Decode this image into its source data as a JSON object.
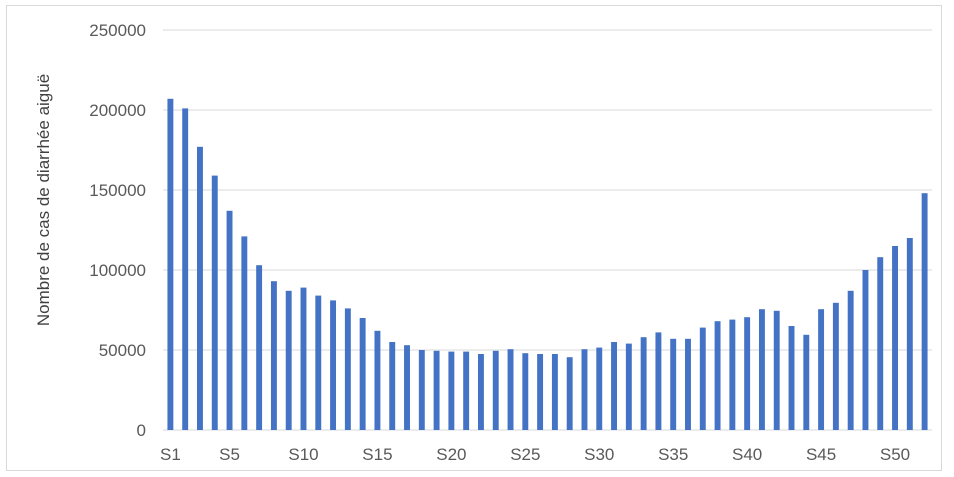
{
  "chart_data": {
    "type": "bar",
    "ylabel": "Nombre de cas  de diarrhée aiguë",
    "xlabel": "",
    "title": "",
    "ylim": [
      0,
      250000
    ],
    "yticks": [
      0,
      50000,
      100000,
      150000,
      200000,
      250000
    ],
    "ytick_labels": [
      "0",
      "50000",
      "100000",
      "150000",
      "200000",
      "250000"
    ],
    "grid": true,
    "legend": "none",
    "bar_color": "#4472c4",
    "grid_color": "#d9d9d9",
    "categories": [
      "S1",
      "S2",
      "S3",
      "S4",
      "S5",
      "S6",
      "S7",
      "S8",
      "S9",
      "S10",
      "S11",
      "S12",
      "S13",
      "S14",
      "S15",
      "S16",
      "S17",
      "S18",
      "S19",
      "S20",
      "S21",
      "S22",
      "S23",
      "S24",
      "S25",
      "S26",
      "S27",
      "S28",
      "S29",
      "S30",
      "S31",
      "S32",
      "S33",
      "S34",
      "S35",
      "S36",
      "S37",
      "S38",
      "S39",
      "S40",
      "S41",
      "S42",
      "S43",
      "S44",
      "S45",
      "S46",
      "S47",
      "S48",
      "S49",
      "S50",
      "S51",
      "S52"
    ],
    "visible_tick_labels": [
      "S1",
      "S5",
      "S10",
      "S15",
      "S20",
      "S25",
      "S30",
      "S35",
      "S40",
      "S45",
      "S50"
    ],
    "values": [
      207000,
      201000,
      177000,
      159000,
      137000,
      121000,
      103000,
      93000,
      87000,
      89000,
      84000,
      81000,
      76000,
      70000,
      62000,
      55000,
      53000,
      50000,
      49500,
      49000,
      49000,
      47500,
      49500,
      50500,
      48000,
      47500,
      47500,
      45500,
      50500,
      51500,
      55000,
      54000,
      58000,
      61000,
      57000,
      57000,
      64000,
      68000,
      69000,
      70500,
      75500,
      74500,
      65000,
      59500,
      75500,
      79500,
      87000,
      100000,
      108000,
      115000,
      120000,
      148000
    ]
  }
}
